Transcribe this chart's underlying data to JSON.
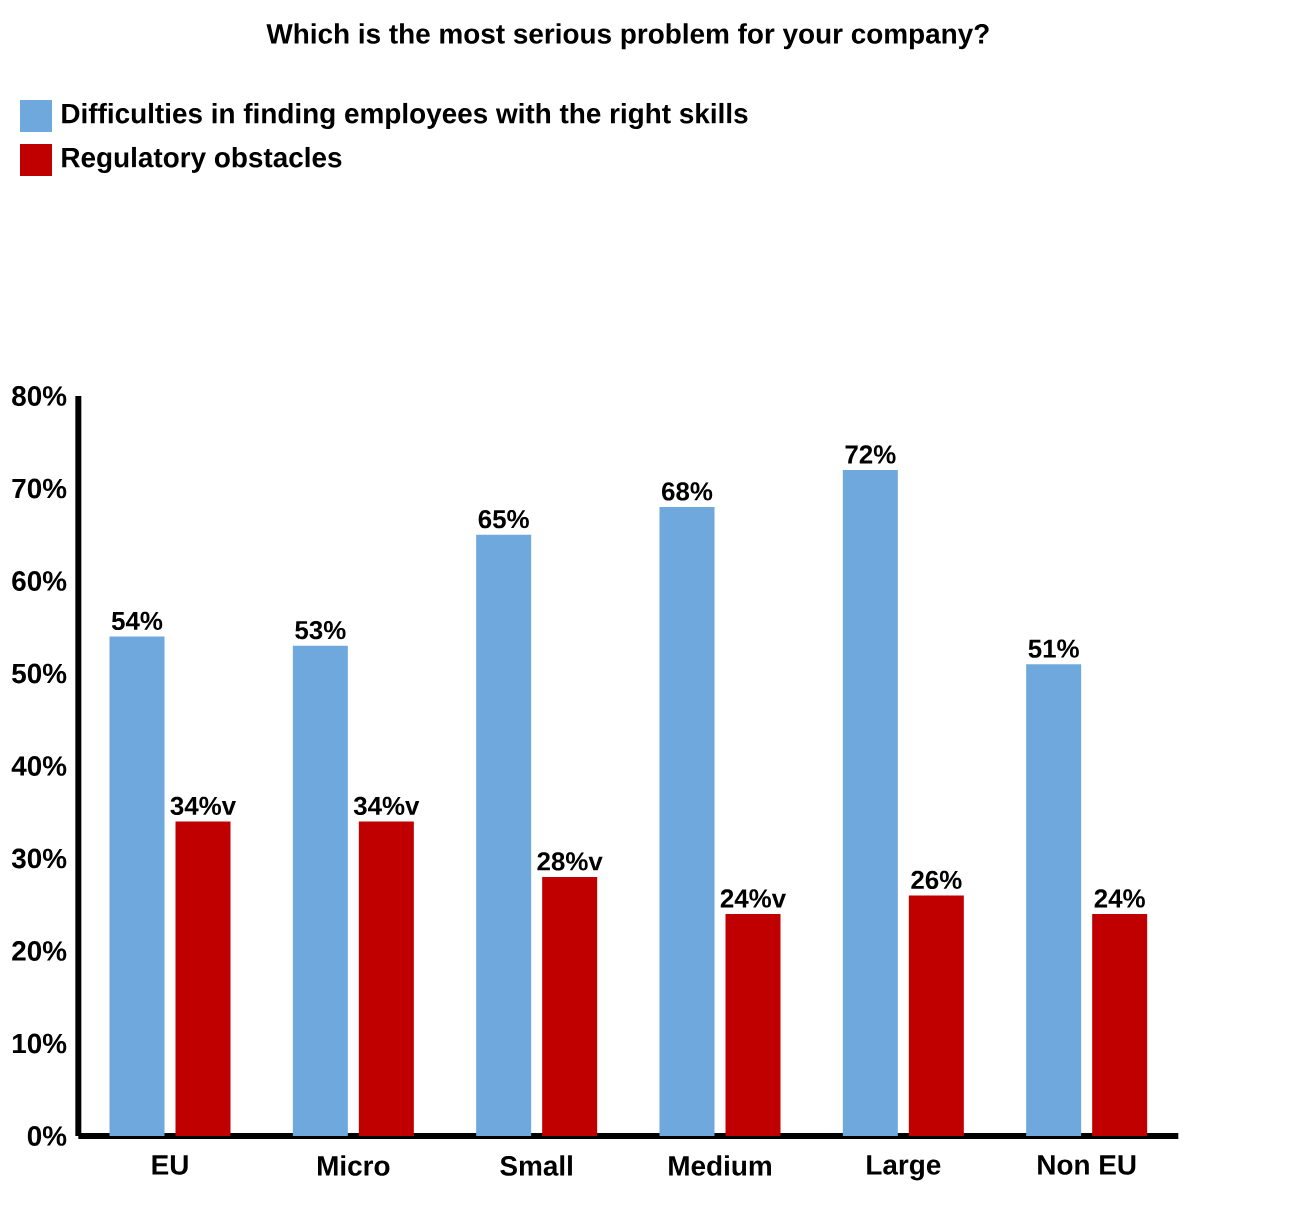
{
  "chart_data": {
    "type": "bar",
    "title": "Which is the most serious problem for your company?",
    "categories": [
      "EU",
      "Micro",
      "Small",
      "Medium",
      "Large",
      "Non EU"
    ],
    "series": [
      {
        "name": "Difficulties in finding employees with  the right skills",
        "color": "#6fa8dc",
        "values": [
          54,
          53,
          65,
          68,
          72,
          51
        ],
        "value_labels": [
          "54%",
          "53%",
          "65%",
          "68%",
          "72%",
          "51%"
        ]
      },
      {
        "name": "Regulatory obstacles",
        "color": "#c00000",
        "values": [
          34,
          34,
          28,
          24,
          26,
          24
        ],
        "value_labels": [
          "34%v",
          "34%v",
          "28%v",
          "24%v",
          "26%",
          "24%"
        ]
      }
    ],
    "ylim": [
      0,
      80
    ],
    "yticks": [
      {
        "value": 0,
        "label": "0%"
      },
      {
        "value": 10,
        "label": "10%"
      },
      {
        "value": 20,
        "label": "20%"
      },
      {
        "value": 30,
        "label": "30%"
      },
      {
        "value": 40,
        "label": "40%"
      },
      {
        "value": 50,
        "label": "50%"
      },
      {
        "value": 60,
        "label": "60%"
      },
      {
        "value": 70,
        "label": "70%"
      },
      {
        "value": 80,
        "label": "80%"
      }
    ],
    "legend": "top left",
    "grid": false
  }
}
